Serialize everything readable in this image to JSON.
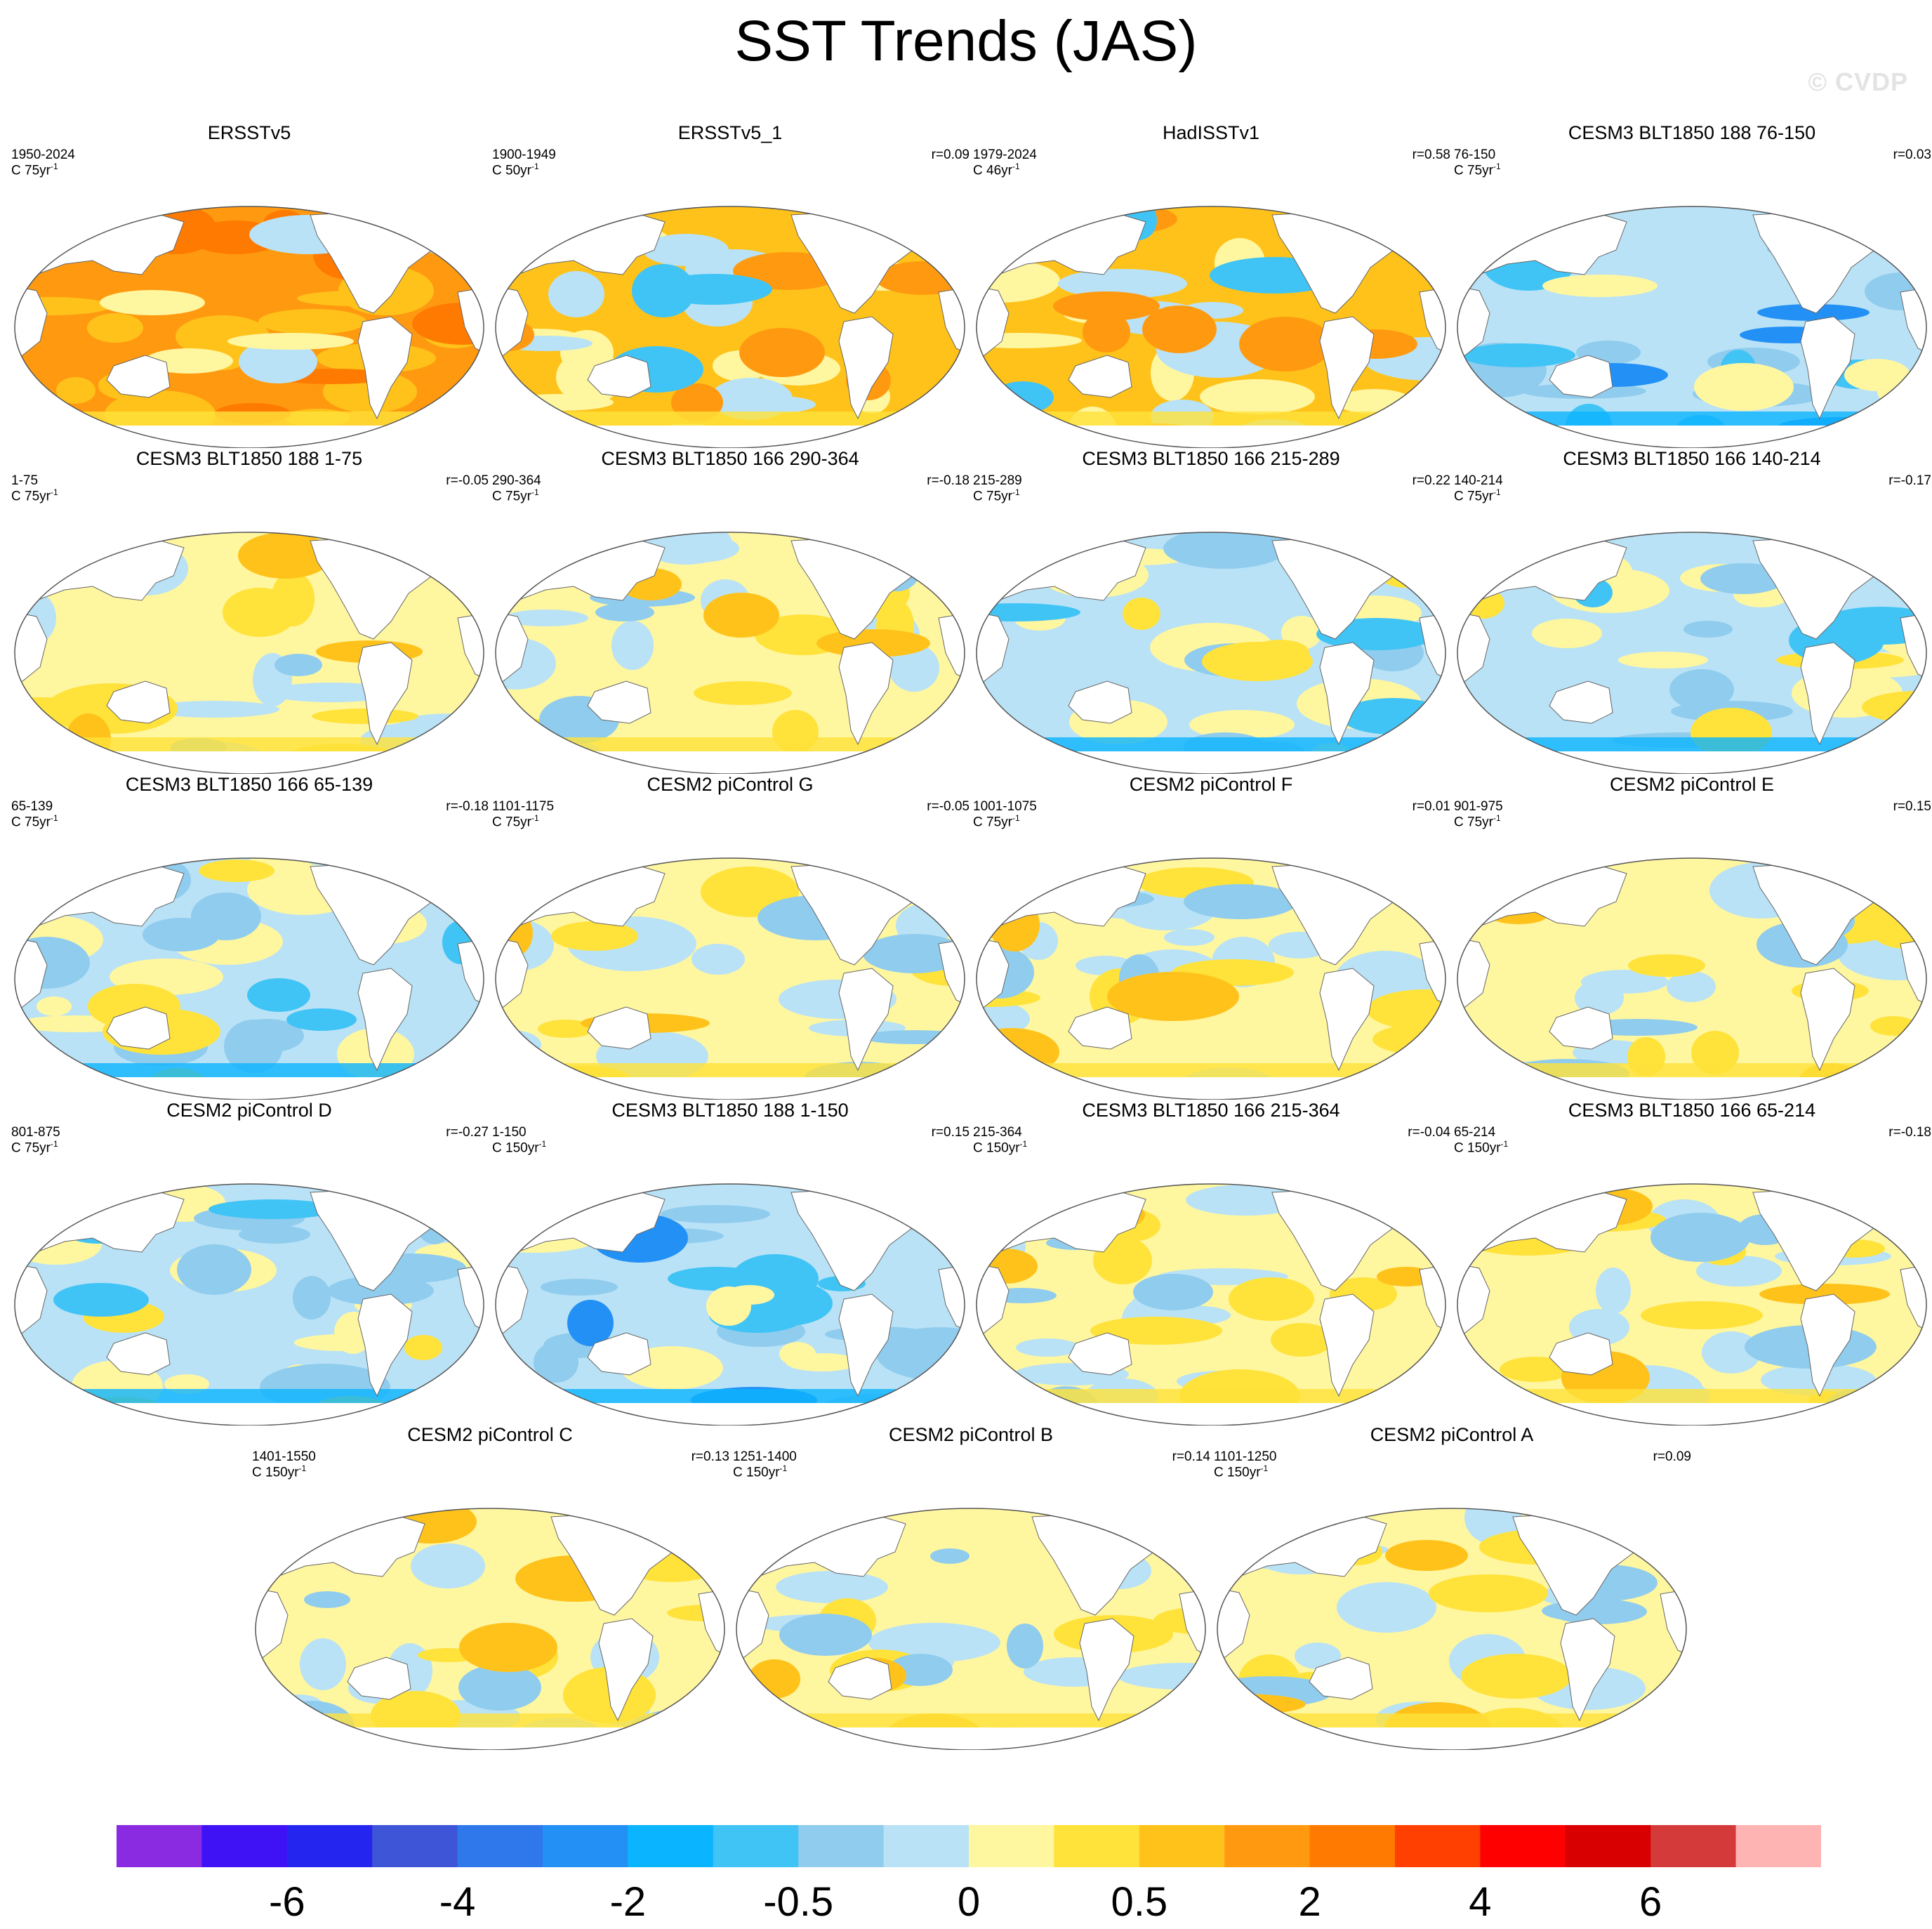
{
  "title": "SST Trends (JAS)",
  "watermark": "© CVDP",
  "colorbar": {
    "colors": [
      "#8a2be2",
      "#3f12f6",
      "#2525f0",
      "#3e55d8",
      "#2f78ec",
      "#2390f5",
      "#0bb4ff",
      "#40c4f5",
      "#90ccee",
      "#b9e2f6",
      "#fff6a0",
      "#ffe23a",
      "#ffc21a",
      "#ff9a10",
      "#ff7a00",
      "#ff4000",
      "#ff0000",
      "#d80000",
      "#d43a3a",
      "#ffb4b4"
    ],
    "tick_labels": [
      "-6",
      "-4",
      "-2",
      "-0.5",
      "0",
      "0.5",
      "2",
      "4",
      "6"
    ]
  },
  "chart_data": {
    "type": "map-panels",
    "variable": "SST trend, July–September (JAS)",
    "panels": [
      {
        "title": "ERSSTv5",
        "years": "1950-2024",
        "units": "C 75yr",
        "units_sup": "-1",
        "r": "",
        "pattern": "warm"
      },
      {
        "title": "ERSSTv5_1",
        "years": "1900-1949",
        "units": "C 50yr",
        "units_sup": "-1",
        "r": "r=0.09",
        "pattern": "warm-mixed"
      },
      {
        "title": "HadISSTv1",
        "years": "1979-2024",
        "units": "C 46yr",
        "units_sup": "-1",
        "r": "r=0.58",
        "pattern": "warm-mixed"
      },
      {
        "title": "CESM3 BLT1850 188 76-150",
        "years": "76-150",
        "units": "C 75yr",
        "units_sup": "-1",
        "r": "r=0.03",
        "pattern": "cool"
      },
      {
        "title": "CESM3 BLT1850 188 1-75",
        "years": "1-75",
        "units": "C 75yr",
        "units_sup": "-1",
        "r": "r=-0.05",
        "pattern": "mixed"
      },
      {
        "title": "CESM3 BLT1850 166 290-364",
        "years": "290-364",
        "units": "C 75yr",
        "units_sup": "-1",
        "r": "r=-0.18",
        "pattern": "mixed"
      },
      {
        "title": "CESM3 BLT1850 166 215-289",
        "years": "215-289",
        "units": "C 75yr",
        "units_sup": "-1",
        "r": "r=0.22",
        "pattern": "mixed-cool"
      },
      {
        "title": "CESM3 BLT1850 166 140-214",
        "years": "140-214",
        "units": "C 75yr",
        "units_sup": "-1",
        "r": "r=-0.17",
        "pattern": "mixed-cool"
      },
      {
        "title": "CESM3 BLT1850 166 65-139",
        "years": "65-139",
        "units": "C 75yr",
        "units_sup": "-1",
        "r": "r=-0.18",
        "pattern": "mixed-cool"
      },
      {
        "title": "CESM2 piControl G",
        "years": "1101-1175",
        "units": "C 75yr",
        "units_sup": "-1",
        "r": "r=-0.05",
        "pattern": "mixed"
      },
      {
        "title": "CESM2 piControl F",
        "years": "1001-1075",
        "units": "C 75yr",
        "units_sup": "-1",
        "r": "r=0.01",
        "pattern": "mixed"
      },
      {
        "title": "CESM2 piControl E",
        "years": "901-975",
        "units": "C 75yr",
        "units_sup": "-1",
        "r": "r=0.15",
        "pattern": "mixed"
      },
      {
        "title": "CESM2 piControl D",
        "years": "801-875",
        "units": "C 75yr",
        "units_sup": "-1",
        "r": "r=-0.27",
        "pattern": "mixed-cool"
      },
      {
        "title": "CESM3 BLT1850 188 1-150",
        "years": "1-150",
        "units": "C 150yr",
        "units_sup": "-1",
        "r": "r=0.15",
        "pattern": "cool"
      },
      {
        "title": "CESM3 BLT1850 166 215-364",
        "years": "215-364",
        "units": "C 150yr",
        "units_sup": "-1",
        "r": "r=-0.04",
        "pattern": "mixed"
      },
      {
        "title": "CESM3 BLT1850 166 65-214",
        "years": "65-214",
        "units": "C 150yr",
        "units_sup": "-1",
        "r": "r=-0.18",
        "pattern": "mixed"
      },
      {
        "title": "CESM2 piControl C",
        "years": "1401-1550",
        "units": "C 150yr",
        "units_sup": "-1",
        "r": "r=0.13",
        "pattern": "mixed"
      },
      {
        "title": "CESM2 piControl B",
        "years": "1251-1400",
        "units": "C 150yr",
        "units_sup": "-1",
        "r": "r=0.14",
        "pattern": "mixed"
      },
      {
        "title": "CESM2 piControl A",
        "years": "1101-1250",
        "units": "C 150yr",
        "units_sup": "-1",
        "r": "r=0.09",
        "pattern": "mixed"
      }
    ]
  }
}
